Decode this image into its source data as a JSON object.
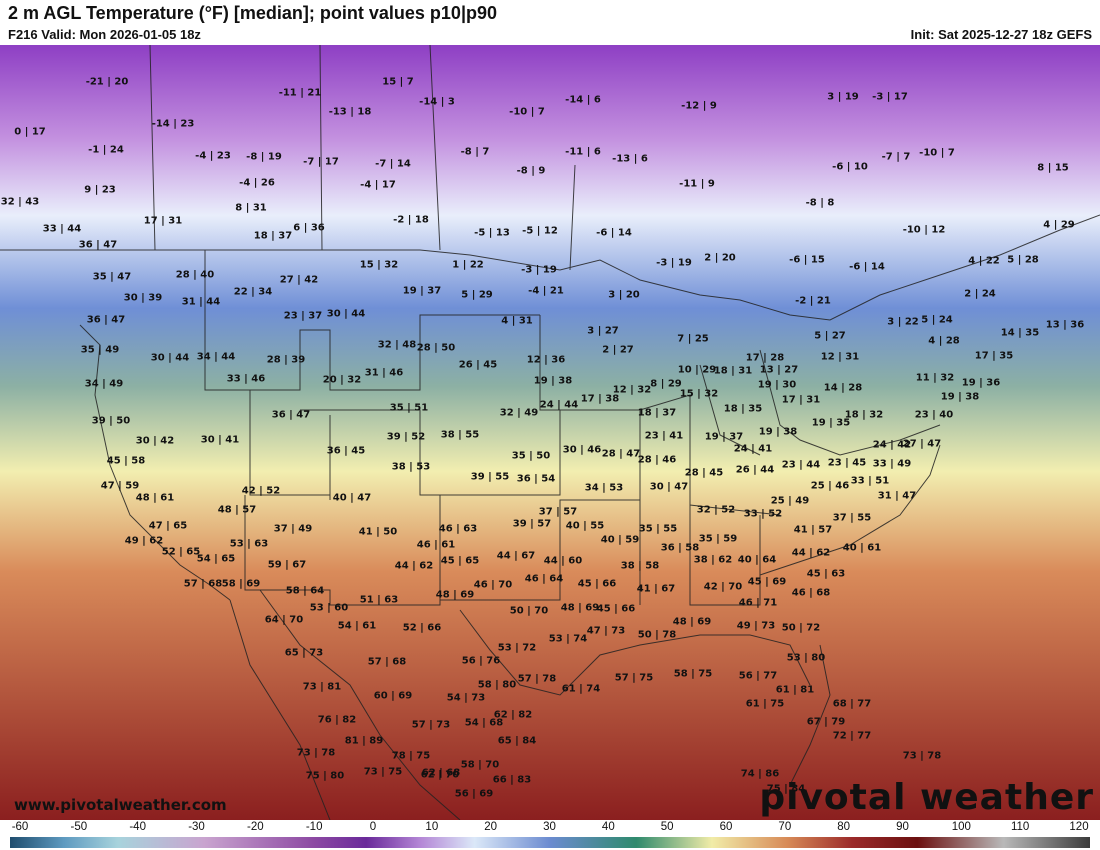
{
  "header": {
    "title": "2 m AGL Temperature (°F) [median]; point values p10|p90",
    "valid": "F216 Valid: Mon 2026-01-05 18z",
    "init": "Init: Sat 2025-12-27 18z GEFS"
  },
  "footer": {
    "website": "www.pivotalweather.com",
    "logo": "pivotal weather"
  },
  "colorbar": {
    "ticks": [
      "-60",
      "-50",
      "-40",
      "-30",
      "-20",
      "-10",
      "0",
      "10",
      "20",
      "30",
      "40",
      "50",
      "60",
      "70",
      "80",
      "90",
      "100",
      "110",
      "120"
    ]
  },
  "points": [
    "-21|20",
    "-11|21",
    "15|7",
    "-14|3",
    "-14|6",
    "-12|9",
    "3|19",
    "-3|17",
    "0|17",
    "-14|23",
    "-13|18",
    "-10|7",
    "-8|7",
    "-11|6",
    "-13|6",
    "-6|10",
    "-7|7",
    "-10|7",
    "8|15",
    "-1|24",
    "-4|23",
    "-8|19",
    "-7|17",
    "-7|14",
    "-8|9",
    "-11|9",
    "-8|8",
    "9|23",
    "-4|26",
    "-4|17",
    "8|31",
    "-2|18",
    "-5|13",
    "-5|12",
    "-6|14",
    "-10|12",
    "4|29",
    "32|43",
    "17|31",
    "33|44",
    "18|37",
    "6|36",
    "15|32",
    "1|22",
    "-3|19",
    "-3|19",
    "2|20",
    "-6|15",
    "-6|14",
    "4|22",
    "5|28",
    "36|47",
    "35|47",
    "28|40",
    "22|34",
    "27|42",
    "19|37",
    "5|29",
    "-4|21",
    "3|20",
    "2|24",
    "-2|21",
    "3|22",
    "5|24",
    "30|39",
    "31|44",
    "23|37",
    "30|44",
    "4|31",
    "3|27",
    "14|35",
    "13|36",
    "36|47",
    "35|49",
    "30|44",
    "34|44",
    "28|39",
    "32|48",
    "28|50",
    "12|36",
    "2|27",
    "7|25",
    "17|28",
    "5|27",
    "4|28",
    "17|35",
    "34|49",
    "33|46",
    "20|32",
    "31|46",
    "26|45",
    "19|38",
    "12|32",
    "8|29",
    "10|29",
    "18|31",
    "13|27",
    "12|31",
    "11|32",
    "19|36",
    "39|50",
    "36|47",
    "35|51",
    "32|49",
    "24|44",
    "17|38",
    "18|37",
    "15|32",
    "19|30",
    "14|28",
    "17|31",
    "19|38",
    "30|42",
    "30|41",
    "39|52",
    "38|55",
    "23|41",
    "18|35",
    "19|37",
    "19|38",
    "19|35",
    "18|32",
    "23|40",
    "36|45",
    "35|50",
    "30|46",
    "28|47",
    "28|46",
    "24|41",
    "24|42",
    "27|47",
    "45|58",
    "38|53",
    "39|55",
    "36|54",
    "28|45",
    "26|44",
    "23|44",
    "23|45",
    "33|49",
    "47|59",
    "42|52",
    "40|47",
    "34|53",
    "30|47",
    "25|46",
    "33|51",
    "31|47",
    "48|61",
    "48|57",
    "37|57",
    "32|52",
    "33|52",
    "25|49",
    "47|65",
    "37|49",
    "41|50",
    "46|63",
    "39|57",
    "40|55",
    "35|55",
    "41|57",
    "37|55",
    "49|62",
    "53|63",
    "46|61",
    "40|59",
    "36|58",
    "35|59",
    "44|62",
    "40|61",
    "52|65",
    "54|65",
    "59|67",
    "44|62",
    "45|65",
    "44|67",
    "44|60",
    "38|58",
    "38|62",
    "40|64",
    "45|63",
    "57|68",
    "58|69",
    "58|64",
    "48|69",
    "46|70",
    "46|64",
    "45|66",
    "41|67",
    "42|70",
    "45|69",
    "46|68",
    "53|60",
    "51|63",
    "50|70",
    "48|69",
    "45|66",
    "46|71",
    "64|70",
    "54|61",
    "52|66",
    "47|73",
    "50|78",
    "48|69",
    "49|73",
    "50|72",
    "65|73",
    "57|68",
    "56|76",
    "53|72",
    "53|74",
    "57|78",
    "53|80",
    "73|81",
    "60|69",
    "54|73",
    "58|80",
    "61|74",
    "57|75",
    "58|75",
    "56|77",
    "61|81",
    "76|82",
    "57|73",
    "54|68",
    "62|82",
    "61|75",
    "68|77",
    "67|79",
    "81|89",
    "78|75",
    "62|70",
    "65|84",
    "72|77",
    "73|78",
    "73|75",
    "62|68",
    "58|70",
    "73|78",
    "75|80",
    "66|83",
    "56|69",
    "74|86",
    "75|84"
  ]
}
